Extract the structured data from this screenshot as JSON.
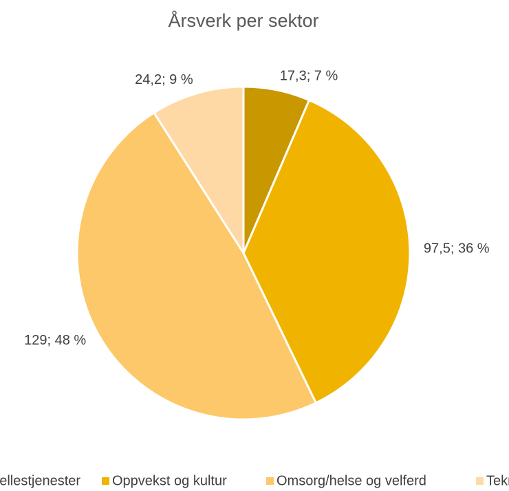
{
  "chart_data": {
    "type": "pie",
    "title": "Årsverk per sektor",
    "categories": [
      "Fellestjenester",
      "Oppvekst og kultur",
      "Omsorg/helse og velferd",
      "Teknisk"
    ],
    "values": [
      17.3,
      97.5,
      129,
      24.2
    ],
    "value_labels": [
      "17,3; 7 %",
      "97,5; 36 %",
      "129; 48 %",
      "24,2; 9 %"
    ],
    "colors": [
      "#c99700",
      "#f0b400",
      "#fdc86a",
      "#fed9a6"
    ],
    "legend": "bottom"
  }
}
